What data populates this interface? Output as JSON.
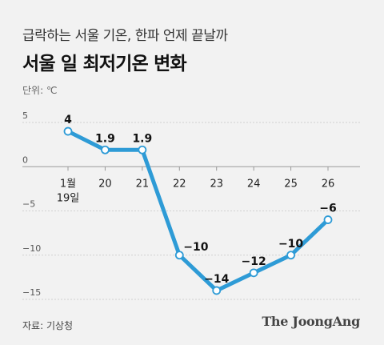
{
  "header": {
    "subtitle": "급락하는 서울 기온, 한파 언제 끝날까",
    "title": "서울 일 최저기온 변화"
  },
  "unit_label": "단위: ℃",
  "footer": {
    "source": "자료: 기상청",
    "brand": "The JoongAng"
  },
  "colors": {
    "line": "#2e9bd6",
    "axis": "#999999",
    "grid": "#d0d0d0"
  },
  "chart_data": {
    "type": "line",
    "x": [
      "1월 19일",
      "20",
      "21",
      "22",
      "23",
      "24",
      "25",
      "26"
    ],
    "values": [
      4,
      1.9,
      1.9,
      -10,
      -14,
      -12,
      -10,
      -6
    ],
    "data_labels": [
      "4",
      "1.9",
      "1.9",
      "−10",
      "−14",
      "−12",
      "−10",
      "−6"
    ],
    "y_ticks": [
      5,
      0,
      -5,
      -10,
      -15
    ],
    "y_tick_labels": [
      "5",
      "0",
      "−5",
      "−10",
      "−15"
    ],
    "ylim": [
      -15,
      5
    ],
    "grid": true
  }
}
